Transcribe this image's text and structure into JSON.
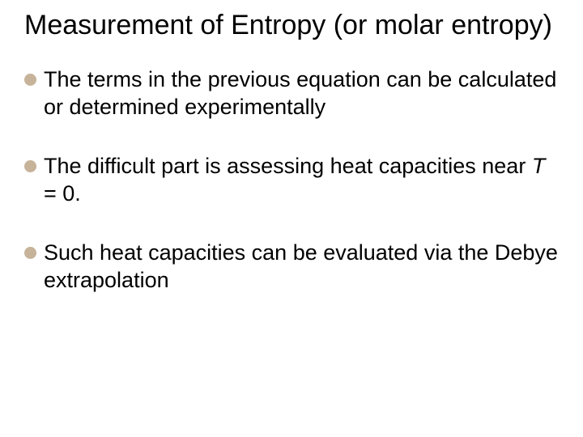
{
  "slide": {
    "title": "Measurement of Entropy (or molar entropy)",
    "title_fontsize": 34,
    "title_color": "#000000",
    "background_color": "#ffffff",
    "bullets": [
      {
        "text": "The terms in the previous equation can be calculated or determined experimentally",
        "dot_color": "#c7b39a"
      },
      {
        "text_prefix": "The difficult part is assessing heat capacities near ",
        "text_italic": "T",
        "text_suffix": " = 0.",
        "dot_color": "#c7b39a"
      },
      {
        "text": "Such heat capacities can be evaluated via the Debye extrapolation",
        "dot_color": "#c7b39a"
      }
    ],
    "bullet_fontsize": 27,
    "bullet_text_color": "#000000",
    "bullet_dot_size": 15
  }
}
